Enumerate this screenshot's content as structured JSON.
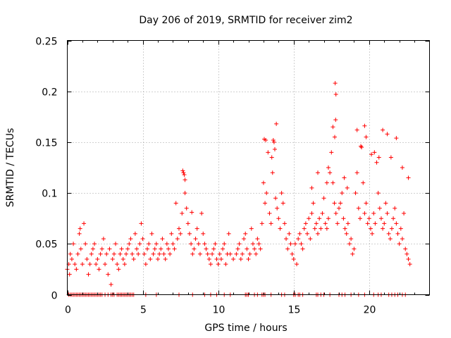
{
  "chart_data": {
    "type": "scatter",
    "title": "Day 206 of 2019, SRMTID for receiver zim2",
    "xlabel": "GPS time / hours",
    "ylabel": "SRMTID / TECUs",
    "xlim": [
      0,
      24
    ],
    "ylim": [
      0,
      0.25
    ],
    "x_ticks": [
      0,
      5,
      10,
      15,
      20
    ],
    "x_tick_labels": [
      "0",
      "5",
      "10",
      "15",
      "20"
    ],
    "y_ticks": [
      0,
      0.05,
      0.1,
      0.15,
      0.2,
      0.25
    ],
    "y_tick_labels": [
      "0",
      "0.05",
      "0.1",
      "0.15",
      "0.2",
      "0.25"
    ],
    "grid": true,
    "marker": "plus",
    "color": "#ff0000",
    "series": [
      {
        "name": "SRMTID",
        "points": [
          [
            0.0,
            0.025
          ],
          [
            0.1,
            0.03
          ],
          [
            0.15,
            0.02
          ],
          [
            0.2,
            0.04
          ],
          [
            0.3,
            0.035
          ],
          [
            0.4,
            0.05
          ],
          [
            0.5,
            0.03
          ],
          [
            0.6,
            0.025
          ],
          [
            0.7,
            0.04
          ],
          [
            0.8,
            0.06
          ],
          [
            0.85,
            0.065
          ],
          [
            0.9,
            0.045
          ],
          [
            1.0,
            0.03
          ],
          [
            1.1,
            0.07
          ],
          [
            1.2,
            0.05
          ],
          [
            1.3,
            0.035
          ],
          [
            1.4,
            0.02
          ],
          [
            1.5,
            0.03
          ],
          [
            1.6,
            0.04
          ],
          [
            1.7,
            0.045
          ],
          [
            1.8,
            0.05
          ],
          [
            1.9,
            0.03
          ],
          [
            2.0,
            0.035
          ],
          [
            2.1,
            0.025
          ],
          [
            2.2,
            0.04
          ],
          [
            2.3,
            0.045
          ],
          [
            2.4,
            0.055
          ],
          [
            2.5,
            0.03
          ],
          [
            2.6,
            0.04
          ],
          [
            2.7,
            0.02
          ],
          [
            2.8,
            0.045
          ],
          [
            2.9,
            0.01
          ],
          [
            3.0,
            0.035
          ],
          [
            3.1,
            0.04
          ],
          [
            3.2,
            0.05
          ],
          [
            3.3,
            0.03
          ],
          [
            3.4,
            0.025
          ],
          [
            3.5,
            0.04
          ],
          [
            3.6,
            0.045
          ],
          [
            3.7,
            0.035
          ],
          [
            3.8,
            0.03
          ],
          [
            3.9,
            0.04
          ],
          [
            4.0,
            0.045
          ],
          [
            4.1,
            0.05
          ],
          [
            4.2,
            0.055
          ],
          [
            4.3,
            0.04
          ],
          [
            4.4,
            0.035
          ],
          [
            4.5,
            0.06
          ],
          [
            4.6,
            0.045
          ],
          [
            4.7,
            0.04
          ],
          [
            4.8,
            0.05
          ],
          [
            4.9,
            0.07
          ],
          [
            5.0,
            0.055
          ],
          [
            5.1,
            0.04
          ],
          [
            5.2,
            0.03
          ],
          [
            5.3,
            0.045
          ],
          [
            5.4,
            0.05
          ],
          [
            5.5,
            0.035
          ],
          [
            5.6,
            0.06
          ],
          [
            5.7,
            0.04
          ],
          [
            5.8,
            0.045
          ],
          [
            5.9,
            0.05
          ],
          [
            6.0,
            0.035
          ],
          [
            6.1,
            0.04
          ],
          [
            6.2,
            0.045
          ],
          [
            6.3,
            0.055
          ],
          [
            6.4,
            0.04
          ],
          [
            6.5,
            0.035
          ],
          [
            6.6,
            0.05
          ],
          [
            6.7,
            0.045
          ],
          [
            6.8,
            0.04
          ],
          [
            6.9,
            0.06
          ],
          [
            7.0,
            0.05
          ],
          [
            7.1,
            0.045
          ],
          [
            7.2,
            0.09
          ],
          [
            7.3,
            0.055
          ],
          [
            7.4,
            0.065
          ],
          [
            7.5,
            0.06
          ],
          [
            7.6,
            0.08
          ],
          [
            7.7,
            0.12
          ],
          [
            7.8,
            0.1
          ],
          [
            7.9,
            0.085
          ],
          [
            8.0,
            0.07
          ],
          [
            8.1,
            0.06
          ],
          [
            8.2,
            0.05
          ],
          [
            8.3,
            0.04
          ],
          [
            8.4,
            0.045
          ],
          [
            8.5,
            0.055
          ],
          [
            8.6,
            0.065
          ],
          [
            8.7,
            0.05
          ],
          [
            8.8,
            0.04
          ],
          [
            8.9,
            0.08
          ],
          [
            9.0,
            0.06
          ],
          [
            9.1,
            0.05
          ],
          [
            9.2,
            0.045
          ],
          [
            9.3,
            0.04
          ],
          [
            9.4,
            0.035
          ],
          [
            9.5,
            0.03
          ],
          [
            9.6,
            0.04
          ],
          [
            9.7,
            0.045
          ],
          [
            9.8,
            0.05
          ],
          [
            9.9,
            0.035
          ],
          [
            10.0,
            0.03
          ],
          [
            10.1,
            0.04
          ],
          [
            10.2,
            0.035
          ],
          [
            10.3,
            0.045
          ],
          [
            10.4,
            0.05
          ],
          [
            10.5,
            0.03
          ],
          [
            10.6,
            0.04
          ],
          [
            10.7,
            0.06
          ],
          [
            10.8,
            0.04
          ],
          [
            11.0,
            0.035
          ],
          [
            11.2,
            0.04
          ],
          [
            11.3,
            0.045
          ],
          [
            11.4,
            0.05
          ],
          [
            11.5,
            0.035
          ],
          [
            11.6,
            0.04
          ],
          [
            11.7,
            0.055
          ],
          [
            11.8,
            0.06
          ],
          [
            11.9,
            0.045
          ],
          [
            12.0,
            0.035
          ],
          [
            12.1,
            0.04
          ],
          [
            12.2,
            0.065
          ],
          [
            12.3,
            0.05
          ],
          [
            12.4,
            0.045
          ],
          [
            12.5,
            0.04
          ],
          [
            12.6,
            0.055
          ],
          [
            12.7,
            0.05
          ],
          [
            12.8,
            0.045
          ],
          [
            12.9,
            0.07
          ],
          [
            13.0,
            0.11
          ],
          [
            13.1,
            0.09
          ],
          [
            13.2,
            0.1
          ],
          [
            13.3,
            0.14
          ],
          [
            13.4,
            0.08
          ],
          [
            13.5,
            0.07
          ],
          [
            13.6,
            0.12
          ],
          [
            13.7,
            0.15
          ],
          [
            13.8,
            0.095
          ],
          [
            13.9,
            0.085
          ],
          [
            14.0,
            0.075
          ],
          [
            14.1,
            0.065
          ],
          [
            14.2,
            0.1
          ],
          [
            14.3,
            0.09
          ],
          [
            14.4,
            0.07
          ],
          [
            14.5,
            0.055
          ],
          [
            14.6,
            0.045
          ],
          [
            14.7,
            0.06
          ],
          [
            14.8,
            0.05
          ],
          [
            14.9,
            0.04
          ],
          [
            15.0,
            0.035
          ],
          [
            15.1,
            0.05
          ],
          [
            15.2,
            0.03
          ],
          [
            15.3,
            0.055
          ],
          [
            15.4,
            0.06
          ],
          [
            15.5,
            0.05
          ],
          [
            15.6,
            0.045
          ],
          [
            15.7,
            0.065
          ],
          [
            15.8,
            0.07
          ],
          [
            15.9,
            0.06
          ],
          [
            16.0,
            0.075
          ],
          [
            16.1,
            0.055
          ],
          [
            16.2,
            0.08
          ],
          [
            16.3,
            0.09
          ],
          [
            16.4,
            0.065
          ],
          [
            16.5,
            0.07
          ],
          [
            16.6,
            0.06
          ],
          [
            16.7,
            0.075
          ],
          [
            16.8,
            0.065
          ],
          [
            16.9,
            0.08
          ],
          [
            17.0,
            0.095
          ],
          [
            17.1,
            0.07
          ],
          [
            17.2,
            0.065
          ],
          [
            17.3,
            0.075
          ],
          [
            17.4,
            0.12
          ],
          [
            17.5,
            0.14
          ],
          [
            17.6,
            0.11
          ],
          [
            17.7,
            0.09
          ],
          [
            17.8,
            0.08
          ],
          [
            17.9,
            0.07
          ],
          [
            18.0,
            0.085
          ],
          [
            18.1,
            0.09
          ],
          [
            18.2,
            0.1
          ],
          [
            18.3,
            0.075
          ],
          [
            18.4,
            0.065
          ],
          [
            18.5,
            0.06
          ],
          [
            18.6,
            0.07
          ],
          [
            18.7,
            0.05
          ],
          [
            18.8,
            0.055
          ],
          [
            18.9,
            0.04
          ],
          [
            19.0,
            0.045
          ],
          [
            19.1,
            0.1
          ],
          [
            19.2,
            0.12
          ],
          [
            19.3,
            0.085
          ],
          [
            19.4,
            0.075
          ],
          [
            19.5,
            0.145
          ],
          [
            19.6,
            0.11
          ],
          [
            19.7,
            0.08
          ],
          [
            19.8,
            0.09
          ],
          [
            19.9,
            0.07
          ],
          [
            20.0,
            0.075
          ],
          [
            20.1,
            0.065
          ],
          [
            20.2,
            0.06
          ],
          [
            20.3,
            0.08
          ],
          [
            20.4,
            0.07
          ],
          [
            20.5,
            0.13
          ],
          [
            20.6,
            0.1
          ],
          [
            20.7,
            0.085
          ],
          [
            20.8,
            0.075
          ],
          [
            20.9,
            0.065
          ],
          [
            21.0,
            0.07
          ],
          [
            21.1,
            0.09
          ],
          [
            21.2,
            0.08
          ],
          [
            21.3,
            0.06
          ],
          [
            21.4,
            0.055
          ],
          [
            21.5,
            0.065
          ],
          [
            21.6,
            0.075
          ],
          [
            21.7,
            0.085
          ],
          [
            21.8,
            0.07
          ],
          [
            21.9,
            0.06
          ],
          [
            22.0,
            0.05
          ],
          [
            22.1,
            0.065
          ],
          [
            22.2,
            0.055
          ],
          [
            22.3,
            0.08
          ],
          [
            22.4,
            0.045
          ],
          [
            22.5,
            0.04
          ],
          [
            22.6,
            0.035
          ],
          [
            22.7,
            0.03
          ],
          [
            17.75,
            0.208
          ],
          [
            17.8,
            0.197
          ],
          [
            17.78,
            0.172
          ],
          [
            17.72,
            0.155
          ],
          [
            17.6,
            0.165
          ],
          [
            13.85,
            0.168
          ],
          [
            13.05,
            0.153
          ],
          [
            13.15,
            0.152
          ],
          [
            13.65,
            0.152
          ],
          [
            13.75,
            0.143
          ],
          [
            13.55,
            0.135
          ],
          [
            19.45,
            0.146
          ],
          [
            19.7,
            0.166
          ],
          [
            19.8,
            0.155
          ],
          [
            19.2,
            0.162
          ],
          [
            20.9,
            0.162
          ],
          [
            21.2,
            0.158
          ],
          [
            21.45,
            0.135
          ],
          [
            21.8,
            0.154
          ],
          [
            22.2,
            0.125
          ],
          [
            22.6,
            0.115
          ],
          [
            7.65,
            0.122
          ],
          [
            7.75,
            0.118
          ],
          [
            7.8,
            0.113
          ],
          [
            8.25,
            0.081
          ],
          [
            18.35,
            0.115
          ],
          [
            18.55,
            0.105
          ],
          [
            20.15,
            0.138
          ],
          [
            20.35,
            0.14
          ],
          [
            20.65,
            0.135
          ],
          [
            16.2,
            0.105
          ],
          [
            16.6,
            0.12
          ],
          [
            17.2,
            0.11
          ],
          [
            17.3,
            0.125
          ]
        ]
      }
    ],
    "zero_points_x": [
      0.1,
      0.2,
      0.3,
      0.4,
      0.5,
      0.6,
      0.7,
      0.8,
      0.9,
      1.0,
      1.1,
      1.2,
      1.3,
      1.4,
      1.5,
      1.6,
      1.7,
      1.8,
      1.9,
      2.0,
      2.1,
      2.2,
      2.3,
      2.5,
      2.7,
      2.9,
      3.0,
      3.1,
      3.3,
      3.4,
      3.5,
      3.6,
      3.7,
      3.8,
      3.9,
      4.0,
      4.1,
      4.2,
      4.3,
      4.4,
      5.2,
      5.9,
      7.4,
      8.3,
      9.1,
      9.5,
      9.9,
      10.4,
      10.8,
      11.8,
      11.9,
      12.0,
      12.4,
      12.6,
      12.9,
      13.0,
      13.1,
      13.5,
      14.2,
      14.4,
      15.0,
      15.1,
      15.3,
      15.4,
      15.6,
      16.5,
      16.6,
      16.8,
      17.0,
      17.4,
      18.0,
      18.2,
      18.4,
      18.8,
      19.3,
      19.7,
      20.3,
      20.6,
      20.8,
      21.3,
      21.5,
      21.7,
      21.9,
      22.2,
      22.4
    ]
  }
}
